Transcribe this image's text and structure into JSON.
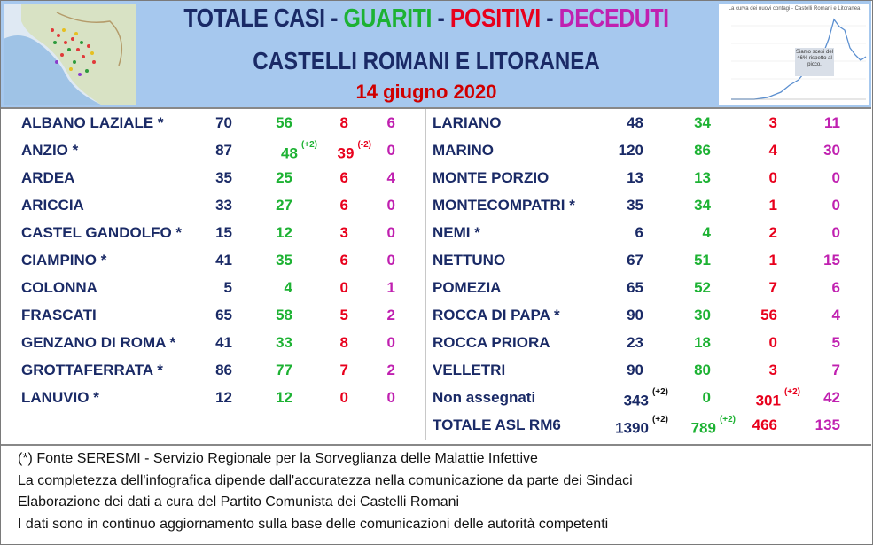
{
  "header": {
    "title_parts": [
      "TOTALE CASI",
      " - ",
      "GUARITI",
      " - ",
      "POSITIVI",
      " - ",
      "DECEDUTI"
    ],
    "subtitle": "CASTELLI ROMANI E LITORANEA",
    "date": "14 giugno 2020",
    "mini_chart": {
      "title": "La curva dei nuovi contagi - Castelli Romani e Litoranea",
      "note": "Siamo scesi del 46% rispetto al picco."
    }
  },
  "colors": {
    "total": "#1a2a66",
    "guariti": "#1db233",
    "positivi": "#e8001c",
    "deceduti": "#c020b0"
  },
  "left_rows": [
    {
      "name": "ALBANO LAZIALE *",
      "total": "70",
      "guariti": "56",
      "positivi": "8",
      "deceduti": "6"
    },
    {
      "name": "ANZIO *",
      "total": "87",
      "guariti": "48",
      "guariti_delta": "(+2)",
      "positivi": "39",
      "positivi_delta": "(-2)",
      "deceduti": "0"
    },
    {
      "name": "ARDEA",
      "total": "35",
      "guariti": "25",
      "positivi": "6",
      "deceduti": "4"
    },
    {
      "name": "ARICCIA",
      "total": "33",
      "guariti": "27",
      "positivi": "6",
      "deceduti": "0"
    },
    {
      "name": "CASTEL GANDOLFO *",
      "total": "15",
      "guariti": "12",
      "positivi": "3",
      "deceduti": "0"
    },
    {
      "name": "CIAMPINO *",
      "total": "41",
      "guariti": "35",
      "positivi": "6",
      "deceduti": "0"
    },
    {
      "name": "COLONNA",
      "total": "5",
      "guariti": "4",
      "positivi": "0",
      "deceduti": "1"
    },
    {
      "name": "FRASCATI",
      "total": "65",
      "guariti": "58",
      "positivi": "5",
      "deceduti": "2"
    },
    {
      "name": "GENZANO DI ROMA *",
      "total": "41",
      "guariti": "33",
      "positivi": "8",
      "deceduti": "0"
    },
    {
      "name": "GROTTAFERRATA *",
      "total": "86",
      "guariti": "77",
      "positivi": "7",
      "deceduti": "2"
    },
    {
      "name": "LANUVIO *",
      "total": "12",
      "guariti": "12",
      "positivi": "0",
      "deceduti": "0"
    }
  ],
  "right_rows": [
    {
      "name": "LARIANO",
      "total": "48",
      "guariti": "34",
      "positivi": "3",
      "deceduti": "11"
    },
    {
      "name": "MARINO",
      "total": "120",
      "guariti": "86",
      "positivi": "4",
      "deceduti": "30"
    },
    {
      "name": "MONTE PORZIO",
      "total": "13",
      "guariti": "13",
      "positivi": "0",
      "deceduti": "0"
    },
    {
      "name": "MONTECOMPATRI *",
      "total": "35",
      "guariti": "34",
      "positivi": "1",
      "deceduti": "0"
    },
    {
      "name": "NEMI *",
      "total": "6",
      "guariti": "4",
      "positivi": "2",
      "deceduti": "0"
    },
    {
      "name": "NETTUNO",
      "total": "67",
      "guariti": "51",
      "positivi": "1",
      "deceduti": "15"
    },
    {
      "name": "POMEZIA",
      "total": "65",
      "guariti": "52",
      "positivi": "7",
      "deceduti": "6"
    },
    {
      "name": "ROCCA DI PAPA *",
      "total": "90",
      "guariti": "30",
      "positivi": "56",
      "deceduti": "4"
    },
    {
      "name": "ROCCA PRIORA",
      "total": "23",
      "guariti": "18",
      "positivi": "0",
      "deceduti": "5"
    },
    {
      "name": "VELLETRI",
      "total": "90",
      "guariti": "80",
      "positivi": "3",
      "deceduti": "7"
    },
    {
      "name": "Non assegnati",
      "total": "343",
      "total_delta": "(+2)",
      "guariti": "0",
      "positivi": "301",
      "positivi_delta": "(+2)",
      "deceduti": "42"
    },
    {
      "name": "TOTALE ASL RM6",
      "total": "1390",
      "total_delta": "(+2)",
      "guariti": "789",
      "guariti_delta": "(+2)",
      "positivi": "466",
      "deceduti": "135"
    }
  ],
  "footer": [
    "(*) Fonte SERESMI - Servizio Regionale per la Sorveglianza delle Malattie Infettive",
    "La completezza dell'infografica dipende dall'accuratezza nella comunicazione da parte dei Sindaci",
    "Elaborazione dei dati a cura del Partito Comunista dei Castelli Romani",
    "I dati sono in continuo aggiornamento sulla base delle comunicazioni delle autorità competenti"
  ]
}
